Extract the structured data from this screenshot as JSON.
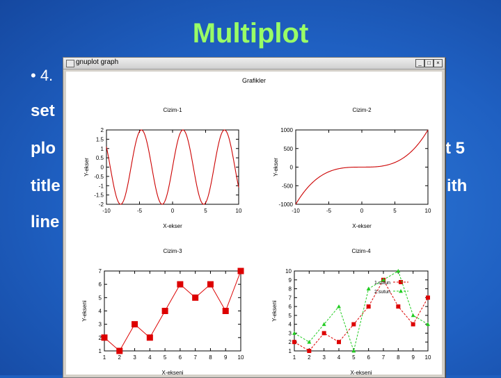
{
  "slide": {
    "title": "Multiplot",
    "bullet": "• 4.",
    "frag_set": "set",
    "frag_plo": "plo",
    "frag_t5": "t 5",
    "frag_title": "title",
    "frag_ith": "ith",
    "frag_line": "line",
    "colors": {
      "background": "#1f5fbf",
      "title": "#99ff66",
      "text": "#ffffff"
    }
  },
  "window": {
    "title": "gnuplot graph",
    "icon": "app-icon",
    "buttons": {
      "minimize": "_",
      "maximize": "□",
      "close": "×"
    }
  },
  "figure": {
    "title": "Grafikler"
  },
  "chart_data": [
    {
      "type": "line",
      "title": "Cizim-1",
      "xlabel": "X-ekser",
      "ylabel": "Y-ekser",
      "function": "2*sin(x)",
      "x_range": [
        -10,
        10
      ],
      "y_range": [
        -2,
        2
      ],
      "xticks": [
        "-10",
        "-5",
        "0",
        "5",
        "10"
      ],
      "yticks": [
        "2",
        "1.5",
        "1",
        "0.5",
        "0",
        "-0.5",
        "-1",
        "-1.5",
        "-2"
      ],
      "color": "#cc0000"
    },
    {
      "type": "line",
      "title": "Cizim-2",
      "xlabel": "X-ekser",
      "ylabel": "Y-ekser",
      "function": "x^3",
      "x_range": [
        -10,
        10
      ],
      "y_range": [
        -1000,
        1000
      ],
      "xticks": [
        "-10",
        "-5",
        "0",
        "5",
        "10"
      ],
      "yticks": [
        "1000",
        "500",
        "0",
        "-500",
        "-1000"
      ],
      "color": "#cc0000"
    },
    {
      "type": "line",
      "title": "Cizim-3",
      "xlabel": "X-ekseni",
      "ylabel": "Y-ekseni",
      "x": [
        1,
        2,
        3,
        4,
        5,
        6,
        7,
        8,
        9,
        10
      ],
      "x_range": [
        1,
        10
      ],
      "y_range": [
        1,
        7
      ],
      "xticks": [
        "1",
        "2",
        "3",
        "4",
        "5",
        "6",
        "7",
        "8",
        "9",
        "10"
      ],
      "yticks": [
        "7",
        "6",
        "5",
        "4",
        "3",
        "2",
        "1"
      ],
      "series": [
        {
          "values": [
            2,
            1,
            3,
            2,
            4,
            6,
            5,
            6,
            4,
            7
          ],
          "color": "#dd0000",
          "marker": "square",
          "dash": false
        }
      ]
    },
    {
      "type": "line",
      "title": "Cizim-4",
      "xlabel": "X-ekseni",
      "ylabel": "Y-ekseni",
      "x": [
        1,
        2,
        3,
        4,
        5,
        6,
        7,
        8,
        9,
        10
      ],
      "x_range": [
        1,
        10
      ],
      "y_range": [
        1,
        10
      ],
      "xticks": [
        "1",
        "2",
        "3",
        "4",
        "5",
        "6",
        "7",
        "8",
        "9",
        "10"
      ],
      "yticks": [
        "10",
        "9",
        "8",
        "7",
        "6",
        "5",
        "4",
        "3",
        "2",
        "1"
      ],
      "series": [
        {
          "name": "1.sutun",
          "values": [
            2,
            1,
            3,
            2,
            4,
            6,
            9,
            6,
            4,
            7
          ],
          "color": "#dd0000",
          "marker": "square",
          "dash": true
        },
        {
          "name": "2.sutun",
          "values": [
            3,
            2,
            4,
            6,
            1,
            8,
            9,
            10,
            5,
            4
          ],
          "color": "#22cc22",
          "marker": "triangle",
          "dash": true
        }
      ],
      "legend": "top-right"
    }
  ]
}
